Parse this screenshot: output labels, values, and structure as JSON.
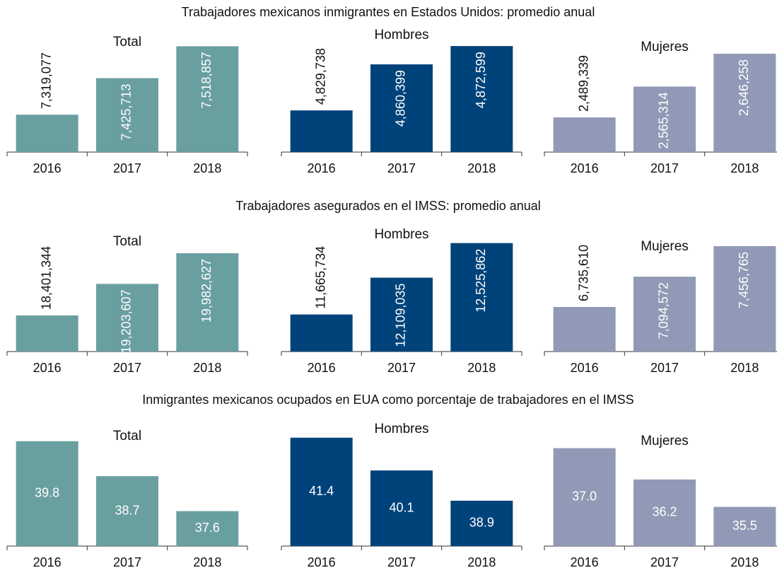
{
  "section_titles": [
    "Trabajadores mexicanos inmigrantes en Estados Unidos: promedio anual",
    "Trabajadores asegurados en el IMSS: promedio anual",
    "Inmigrantes mexicanos ocupados en EUA como porcentaje de trabajadores en el IMSS"
  ],
  "chart_data": [
    {
      "type": "bar",
      "title": "Total",
      "categories": [
        "2016",
        "2017",
        "2018"
      ],
      "values": [
        7319077,
        7425713,
        7518857
      ],
      "value_labels": [
        "7,319,077",
        "7,425,713",
        "7,518,857"
      ],
      "color": "#6a9fa0",
      "ylim": [
        7210000,
        7530000
      ],
      "label_orientation": "vertical"
    },
    {
      "type": "bar",
      "title": "Hombres",
      "categories": [
        "2016",
        "2017",
        "2018"
      ],
      "values": [
        4829738,
        4860399,
        4872599
      ],
      "value_labels": [
        "4,829,738",
        "4,860,399",
        "4,872,599"
      ],
      "color": "#00437a",
      "ylim": [
        4802000,
        4875000
      ],
      "label_orientation": "vertical"
    },
    {
      "type": "bar",
      "title": "Mujeres",
      "categories": [
        "2016",
        "2017",
        "2018"
      ],
      "values": [
        2489339,
        2565314,
        2646258
      ],
      "value_labels": [
        "2,489,339",
        "2,565,314",
        "2,646,258"
      ],
      "color": "#9099b5",
      "ylim": [
        2404000,
        2674000
      ],
      "label_orientation": "vertical"
    },
    {
      "type": "bar",
      "title": "Total",
      "categories": [
        "2016",
        "2017",
        "2018"
      ],
      "values": [
        18401344,
        19203607,
        19982627
      ],
      "value_labels": [
        "18,401,344",
        "19,203,607",
        "19,982,627"
      ],
      "color": "#6a9fa0",
      "ylim": [
        17485000,
        20270000
      ],
      "label_orientation": "vertical"
    },
    {
      "type": "bar",
      "title": "Hombres",
      "categories": [
        "2016",
        "2017",
        "2018"
      ],
      "values": [
        11665734,
        12109035,
        12525862
      ],
      "value_labels": [
        "11,665,734",
        "12,109,035",
        "12,525,862"
      ],
      "color": "#00437a",
      "ylim": [
        11219000,
        12540000
      ],
      "label_orientation": "vertical"
    },
    {
      "type": "bar",
      "title": "Mujeres",
      "categories": [
        "2016",
        "2017",
        "2018"
      ],
      "values": [
        6735610,
        7094572,
        7456765
      ],
      "value_labels": [
        "6,735,610",
        "7,094,572",
        "7,456,765"
      ],
      "color": "#9099b5",
      "ylim": [
        6207000,
        7507000
      ],
      "label_orientation": "vertical"
    },
    {
      "type": "bar",
      "title": "Total",
      "categories": [
        "2016",
        "2017",
        "2018"
      ],
      "values": [
        39.8,
        38.7,
        37.6
      ],
      "color": "#6a9fa0",
      "ylim": [
        36.5,
        39.95
      ],
      "label_orientation": "horizontal"
    },
    {
      "type": "bar",
      "title": "Hombres",
      "categories": [
        "2016",
        "2017",
        "2018"
      ],
      "values": [
        41.4,
        40.1,
        38.9
      ],
      "color": "#00437a",
      "ylim": [
        37.1,
        41.45
      ],
      "label_orientation": "horizontal"
    },
    {
      "type": "bar",
      "title": "Mujeres",
      "categories": [
        "2016",
        "2017",
        "2018"
      ],
      "values": [
        37,
        36.2,
        35.5
      ],
      "value_labels": [
        "37.0",
        "36.2",
        "35.5"
      ],
      "color": "#9099b5",
      "ylim": [
        34.5,
        37.3
      ],
      "label_orientation": "horizontal"
    }
  ]
}
